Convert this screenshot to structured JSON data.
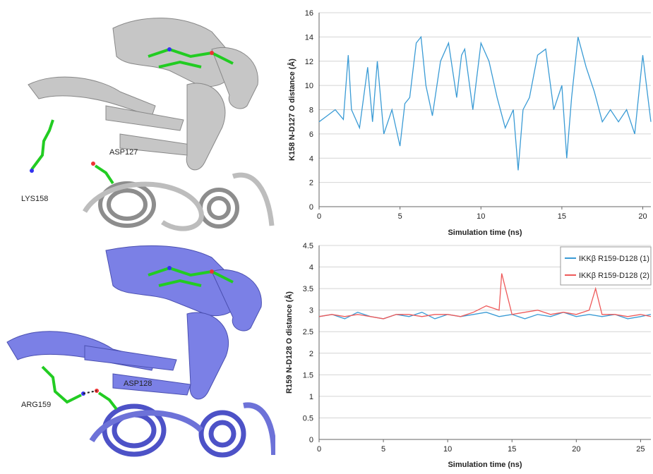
{
  "labels": {
    "top_residue_1": "LYS158",
    "top_residue_2": "ASP127",
    "bottom_residue_1": "ARG159",
    "bottom_residue_2": "ASP128"
  },
  "colors": {
    "top_protein": "#c8c8c8",
    "bottom_protein": "#7a7fe0",
    "series_blue": "#3a9bd5",
    "series_red": "#ee5a5a",
    "grid": "#d4d4d4"
  },
  "chart_data": [
    {
      "type": "line",
      "xlabel": "Simulation time (ns)",
      "ylabel": "K158 N-D127 O distance (Å)",
      "xlim": [
        0,
        20.5
      ],
      "ylim": [
        0,
        16
      ],
      "xticks": [
        0,
        5,
        10,
        15,
        20
      ],
      "yticks": [
        0,
        2,
        4,
        6,
        8,
        10,
        12,
        14,
        16
      ],
      "grid": true,
      "legend": "none",
      "series": [
        {
          "color": "#3a9bd5",
          "x": [
            0,
            0.5,
            1,
            1.5,
            1.8,
            2,
            2.5,
            3,
            3.3,
            3.6,
            4,
            4.5,
            5,
            5.3,
            5.6,
            6,
            6.3,
            6.6,
            7,
            7.5,
            8,
            8.5,
            8.8,
            9,
            9.5,
            10,
            10.5,
            11,
            11.5,
            12,
            12.3,
            12.6,
            13,
            13.5,
            14,
            14.5,
            15,
            15.3,
            15.6,
            16,
            16.5,
            17,
            17.5,
            18,
            18.5,
            19,
            19.5,
            20,
            20.5
          ],
          "y": [
            7,
            7.5,
            8,
            7.2,
            12.5,
            8,
            6.5,
            11.5,
            7,
            12,
            6,
            8,
            5,
            8.5,
            9,
            13.5,
            14,
            10,
            7.5,
            12,
            13.5,
            9,
            12.5,
            13,
            8,
            13.5,
            12,
            9,
            6.5,
            8,
            3,
            8,
            9,
            12.5,
            13,
            8,
            10,
            4,
            9,
            14,
            11.5,
            9.5,
            7,
            8,
            7,
            8,
            6,
            12.5,
            7
          ]
        }
      ]
    },
    {
      "type": "line",
      "xlabel": "Simulation time (ns)",
      "ylabel": "R159 N-D128 O distance (Å)",
      "xlim": [
        0,
        25.8
      ],
      "ylim": [
        0,
        4.5
      ],
      "xticks": [
        0,
        5,
        10,
        15,
        20,
        25
      ],
      "yticks": [
        0,
        0.5,
        1,
        1.5,
        2,
        2.5,
        3,
        3.5,
        4,
        4.5
      ],
      "grid": true,
      "legend": "top-right",
      "series": [
        {
          "name": "IKKβ R159-D128 (1)",
          "color": "#3a9bd5",
          "x": [
            0,
            1,
            2,
            3,
            4,
            5,
            6,
            7,
            8,
            9,
            10,
            11,
            12,
            13,
            14,
            15,
            16,
            17,
            18,
            19,
            20,
            21,
            22,
            23,
            24,
            25,
            25.8
          ],
          "y": [
            2.85,
            2.9,
            2.8,
            2.95,
            2.85,
            2.8,
            2.9,
            2.85,
            2.95,
            2.8,
            2.9,
            2.85,
            2.9,
            2.95,
            2.85,
            2.9,
            2.8,
            2.9,
            2.85,
            2.95,
            2.85,
            2.9,
            2.85,
            2.9,
            2.8,
            2.85,
            2.9
          ]
        },
        {
          "name": "IKKβ R159-D128 (2)",
          "color": "#ee5a5a",
          "x": [
            0,
            1,
            2,
            3,
            4,
            5,
            6,
            7,
            8,
            9,
            10,
            11,
            12,
            13,
            14,
            14.2,
            15,
            16,
            17,
            18,
            19,
            20,
            21,
            21.5,
            22,
            23,
            24,
            25,
            25.8
          ],
          "y": [
            2.85,
            2.9,
            2.85,
            2.9,
            2.85,
            2.8,
            2.9,
            2.9,
            2.85,
            2.9,
            2.9,
            2.85,
            2.95,
            3.1,
            3.0,
            3.85,
            2.9,
            2.95,
            3.0,
            2.9,
            2.95,
            2.9,
            3.0,
            3.5,
            2.9,
            2.9,
            2.85,
            2.9,
            2.85
          ]
        }
      ]
    }
  ]
}
